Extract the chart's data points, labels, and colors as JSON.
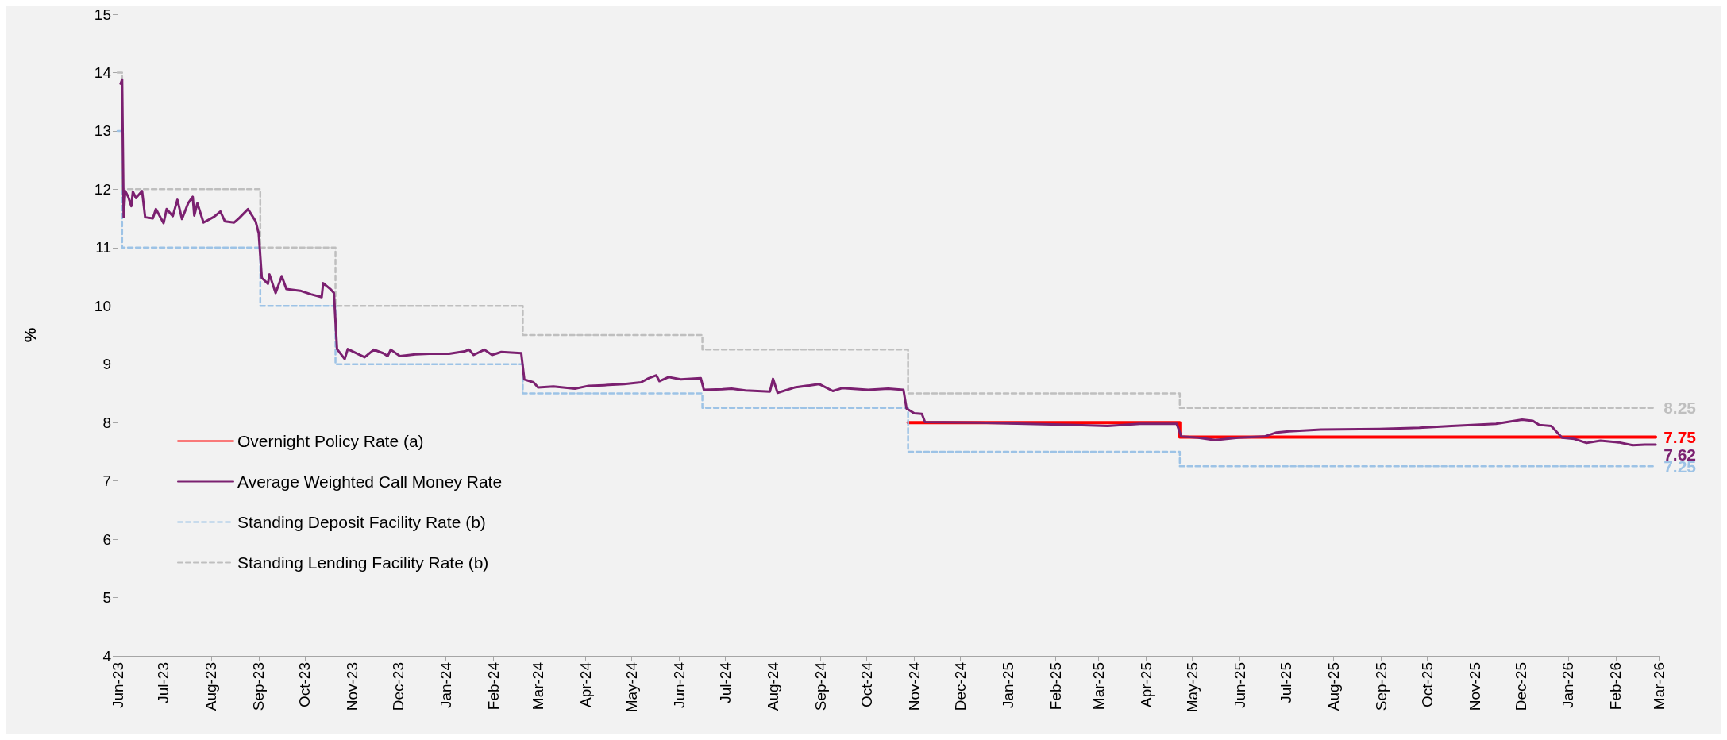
{
  "chart_data": {
    "type": "line",
    "ylabel": "%",
    "ylim": [
      4,
      15
    ],
    "yticks": [
      4,
      5,
      6,
      7,
      8,
      9,
      10,
      11,
      12,
      13,
      14,
      15
    ],
    "xlim": [
      "2023-06-01",
      "2026-03-01"
    ],
    "xticks": [
      {
        "value": "2023-06-01",
        "label": "Jun-23"
      },
      {
        "value": "2023-07-01",
        "label": "Jul-23"
      },
      {
        "value": "2023-08-01",
        "label": "Aug-23"
      },
      {
        "value": "2023-09-01",
        "label": "Sep-23"
      },
      {
        "value": "2023-10-01",
        "label": "Oct-23"
      },
      {
        "value": "2023-11-01",
        "label": "Nov-23"
      },
      {
        "value": "2023-12-01",
        "label": "Dec-23"
      },
      {
        "value": "2024-01-01",
        "label": "Jan-24"
      },
      {
        "value": "2024-02-01",
        "label": "Feb-24"
      },
      {
        "value": "2024-03-01",
        "label": "Mar-24"
      },
      {
        "value": "2024-04-01",
        "label": "Apr-24"
      },
      {
        "value": "2024-05-01",
        "label": "May-24"
      },
      {
        "value": "2024-06-01",
        "label": "Jun-24"
      },
      {
        "value": "2024-07-01",
        "label": "Jul-24"
      },
      {
        "value": "2024-08-01",
        "label": "Aug-24"
      },
      {
        "value": "2024-09-01",
        "label": "Sep-24"
      },
      {
        "value": "2024-10-01",
        "label": "Oct-24"
      },
      {
        "value": "2024-11-01",
        "label": "Nov-24"
      },
      {
        "value": "2024-12-01",
        "label": "Dec-24"
      },
      {
        "value": "2025-01-01",
        "label": "Jan-25"
      },
      {
        "value": "2025-02-01",
        "label": "Feb-25"
      },
      {
        "value": "2025-03-01",
        "label": "Mar-25"
      },
      {
        "value": "2025-04-01",
        "label": "Apr-25"
      },
      {
        "value": "2025-05-01",
        "label": "May-25"
      },
      {
        "value": "2025-06-01",
        "label": "Jun-25"
      },
      {
        "value": "2025-07-01",
        "label": "Jul-25"
      },
      {
        "value": "2025-08-01",
        "label": "Aug-25"
      },
      {
        "value": "2025-09-01",
        "label": "Sep-25"
      },
      {
        "value": "2025-10-01",
        "label": "Oct-25"
      },
      {
        "value": "2025-11-01",
        "label": "Nov-25"
      },
      {
        "value": "2025-12-01",
        "label": "Dec-25"
      },
      {
        "value": "2026-01-01",
        "label": "Jan-26"
      },
      {
        "value": "2026-02-01",
        "label": "Feb-26"
      },
      {
        "value": "2026-03-01",
        "label": "Mar-26"
      }
    ],
    "grid": false,
    "legend": "bottom left",
    "marker": "none",
    "series": [
      {
        "name": "Overnight Policy Rate (a)",
        "type": "step",
        "color": "#ff0000",
        "line_style": "solid",
        "x": [
          "2024-10-28",
          "2025-04-23",
          "2026-02-27"
        ],
        "values": [
          8,
          7.75,
          7.75
        ],
        "value_labels": [
          null,
          null,
          "7.75"
        ]
      },
      {
        "name": "Average Weighted Call Money Rate",
        "color": "#7b2070",
        "line_style": "solid",
        "x": [
          "2023-06-03",
          "2023-06-04",
          "2023-06-05",
          "2023-06-06",
          "2023-06-08",
          "2023-06-10",
          "2023-06-11",
          "2023-06-13",
          "2023-06-17",
          "2023-06-19",
          "2023-06-24",
          "2023-06-26",
          "2023-07-01",
          "2023-07-03",
          "2023-07-07",
          "2023-07-10",
          "2023-07-13",
          "2023-07-17",
          "2023-07-20",
          "2023-07-21",
          "2023-07-23",
          "2023-07-27",
          "2023-08-03",
          "2023-08-07",
          "2023-08-10",
          "2023-08-16",
          "2023-08-19",
          "2023-08-25",
          "2023-08-30",
          "2023-09-01",
          "2023-09-03",
          "2023-09-07",
          "2023-09-08",
          "2023-09-12",
          "2023-09-16",
          "2023-09-19",
          "2023-09-28",
          "2023-10-05",
          "2023-10-12",
          "2023-10-13",
          "2023-10-18",
          "2023-10-20",
          "2023-10-22",
          "2023-10-27",
          "2023-10-29",
          "2023-11-09",
          "2023-11-15",
          "2023-11-21",
          "2023-11-24",
          "2023-11-26",
          "2023-12-02",
          "2023-12-12",
          "2023-12-21",
          "2024-01-03",
          "2024-01-13",
          "2024-01-16",
          "2024-01-19",
          "2024-01-26",
          "2024-01-31",
          "2024-02-06",
          "2024-02-19",
          "2024-02-21",
          "2024-02-27",
          "2024-03-01",
          "2024-03-11",
          "2024-03-25",
          "2024-04-03",
          "2024-04-13",
          "2024-04-26",
          "2024-05-07",
          "2024-05-12",
          "2024-05-17",
          "2024-05-19",
          "2024-05-25",
          "2024-06-02",
          "2024-06-15",
          "2024-06-17",
          "2024-06-29",
          "2024-07-05",
          "2024-07-14",
          "2024-07-30",
          "2024-08-01",
          "2024-08-04",
          "2024-08-15",
          "2024-08-31",
          "2024-09-09",
          "2024-09-15",
          "2024-10-02",
          "2024-10-15",
          "2024-10-25",
          "2024-10-27",
          "2024-11-01",
          "2024-11-06",
          "2024-11-08",
          "2024-12-13",
          "2025-02-10",
          "2025-03-07",
          "2025-03-28",
          "2025-04-21",
          "2025-04-24",
          "2025-05-05",
          "2025-05-16",
          "2025-05-31",
          "2025-06-17",
          "2025-06-25",
          "2025-07-03",
          "2025-07-24",
          "2025-08-31",
          "2025-09-26",
          "2025-10-17",
          "2025-11-15",
          "2025-12-02",
          "2025-12-09",
          "2025-12-13",
          "2025-12-21",
          "2025-12-28",
          "2026-01-05",
          "2026-01-13",
          "2026-01-22",
          "2026-02-03",
          "2026-02-12",
          "2026-02-20",
          "2026-02-27"
        ],
        "values": [
          13.81,
          13.88,
          11.52,
          11.97,
          11.87,
          11.71,
          11.96,
          11.85,
          11.97,
          11.52,
          11.5,
          11.66,
          11.42,
          11.66,
          11.54,
          11.82,
          11.49,
          11.76,
          11.87,
          11.55,
          11.76,
          11.43,
          11.53,
          11.62,
          11.45,
          11.43,
          11.5,
          11.66,
          11.45,
          11.24,
          10.48,
          10.38,
          10.54,
          10.22,
          10.51,
          10.29,
          10.26,
          10.2,
          10.15,
          10.39,
          10.28,
          10.22,
          9.26,
          9.09,
          9.26,
          9.12,
          9.25,
          9.19,
          9.14,
          9.25,
          9.14,
          9.17,
          9.18,
          9.18,
          9.22,
          9.25,
          9.16,
          9.25,
          9.16,
          9.21,
          9.19,
          8.74,
          8.69,
          8.6,
          8.62,
          8.58,
          8.63,
          8.64,
          8.66,
          8.69,
          8.76,
          8.81,
          8.71,
          8.78,
          8.74,
          8.76,
          8.56,
          8.57,
          8.58,
          8.55,
          8.53,
          8.75,
          8.51,
          8.6,
          8.66,
          8.54,
          8.59,
          8.56,
          8.58,
          8.56,
          8.24,
          8.16,
          8.15,
          8.01,
          8,
          7.96,
          7.94,
          7.98,
          7.98,
          7.76,
          7.74,
          7.7,
          7.74,
          7.76,
          7.83,
          7.85,
          7.88,
          7.89,
          7.91,
          7.94,
          7.98,
          8.05,
          8.03,
          7.96,
          7.94,
          7.74,
          7.72,
          7.65,
          7.69,
          7.66,
          7.61,
          7.62,
          7.62
        ],
        "value_labels": [
          null,
          null,
          null,
          null,
          null,
          null,
          null,
          null,
          null,
          null,
          null,
          null,
          null,
          null,
          null,
          null,
          null,
          null,
          null,
          null,
          null,
          null,
          null,
          null,
          null,
          null,
          null,
          null,
          null,
          null,
          null,
          null,
          null,
          null,
          null,
          null,
          null,
          null,
          null,
          null,
          null,
          null,
          null,
          null,
          null,
          null,
          null,
          null,
          null,
          null,
          null,
          null,
          null,
          null,
          null,
          null,
          null,
          null,
          null,
          null,
          null,
          null,
          null,
          null,
          null,
          null,
          null,
          null,
          null,
          null,
          null,
          null,
          null,
          null,
          null,
          null,
          null,
          null,
          null,
          null,
          null,
          null,
          null,
          null,
          null,
          null,
          null,
          null,
          null,
          null,
          null,
          null,
          null,
          null,
          null,
          null,
          null,
          null,
          null,
          null,
          null,
          null,
          null,
          null,
          null,
          null,
          null,
          null,
          null,
          null,
          null,
          null,
          null,
          null,
          null,
          null,
          null,
          null,
          null,
          null,
          null,
          null,
          "7.62"
        ]
      },
      {
        "name": "Standing Deposit Facility Rate (b)",
        "type": "step",
        "color": "#9dc3e6",
        "line_style": "dashed",
        "x": [
          "2023-06-01",
          "2023-06-04",
          "2023-09-02",
          "2023-10-21",
          "2024-02-20",
          "2024-06-16",
          "2024-10-28",
          "2025-04-23",
          "2026-02-27"
        ],
        "values": [
          13,
          11,
          10,
          9,
          8.5,
          8.25,
          7.5,
          7.25,
          7.25
        ],
        "value_labels": [
          null,
          null,
          null,
          null,
          null,
          null,
          null,
          null,
          "7.25"
        ]
      },
      {
        "name": "Standing Lending Facility Rate (b)",
        "type": "step",
        "color": "#bfbfbf",
        "line_style": "dashed",
        "x": [
          "2023-06-01",
          "2023-06-04",
          "2023-09-02",
          "2023-10-21",
          "2024-02-20",
          "2024-06-16",
          "2024-10-28",
          "2025-04-23",
          "2026-02-27"
        ],
        "values": [
          14,
          12,
          11,
          10,
          9.5,
          9.25,
          8.5,
          8.25,
          8.25
        ],
        "value_labels": [
          null,
          null,
          null,
          null,
          null,
          null,
          null,
          null,
          "8.25"
        ]
      }
    ]
  }
}
